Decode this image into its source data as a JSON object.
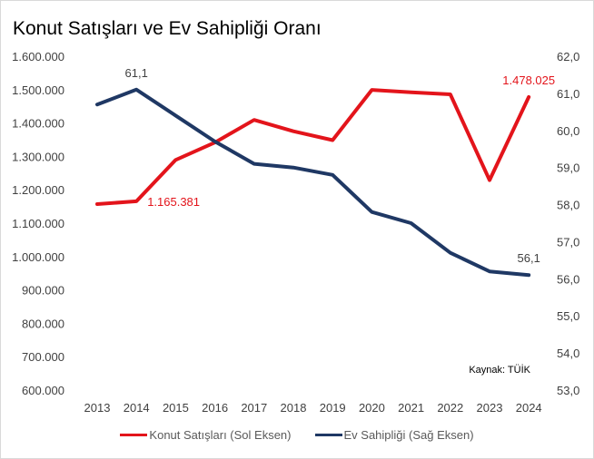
{
  "chart_data": {
    "type": "line",
    "title": "Konut Satışları ve Ev Sahipliği Oranı",
    "source": "Kaynak: TÜİK",
    "x": [
      "2013",
      "2014",
      "2015",
      "2016",
      "2017",
      "2018",
      "2019",
      "2020",
      "2021",
      "2022",
      "2023",
      "2024"
    ],
    "y_left": {
      "range": [
        600000,
        1600000
      ],
      "ticks": [
        "600.000",
        "700.000",
        "800.000",
        "900.000",
        "1.000.000",
        "1.100.000",
        "1.200.000",
        "1.300.000",
        "1.400.000",
        "1.500.000",
        "1.600.000"
      ]
    },
    "y_right": {
      "range": [
        53.0,
        62.0
      ],
      "ticks": [
        "53,0",
        "54,0",
        "55,0",
        "56,0",
        "57,0",
        "58,0",
        "59,0",
        "60,0",
        "61,0",
        "62,0"
      ]
    },
    "grid": false,
    "legend_position": "bottom",
    "series": [
      {
        "name": "Konut Satışları (Sol Eksen)",
        "axis": "left",
        "color": "#e3141b",
        "values": [
          1157190,
          1165381,
          1289320,
          1341453,
          1409314,
          1375398,
          1348729,
          1499316,
          1491856,
          1485786,
          1228765,
          1478025
        ],
        "labels": [
          {
            "index": 1,
            "text": "1.165.381",
            "position": "right"
          },
          {
            "index": 11,
            "text": "1.478.025",
            "position": "above"
          }
        ]
      },
      {
        "name": "Ev Sahipliği (Sağ Eksen)",
        "axis": "right",
        "color": "#1f3864",
        "values": [
          60.7,
          61.1,
          60.4,
          59.7,
          59.1,
          59.0,
          58.8,
          57.8,
          57.5,
          56.7,
          56.2,
          56.1
        ],
        "labels": [
          {
            "index": 1,
            "text": "61,1",
            "position": "above"
          },
          {
            "index": 11,
            "text": "56,1",
            "position": "above"
          }
        ]
      }
    ]
  }
}
